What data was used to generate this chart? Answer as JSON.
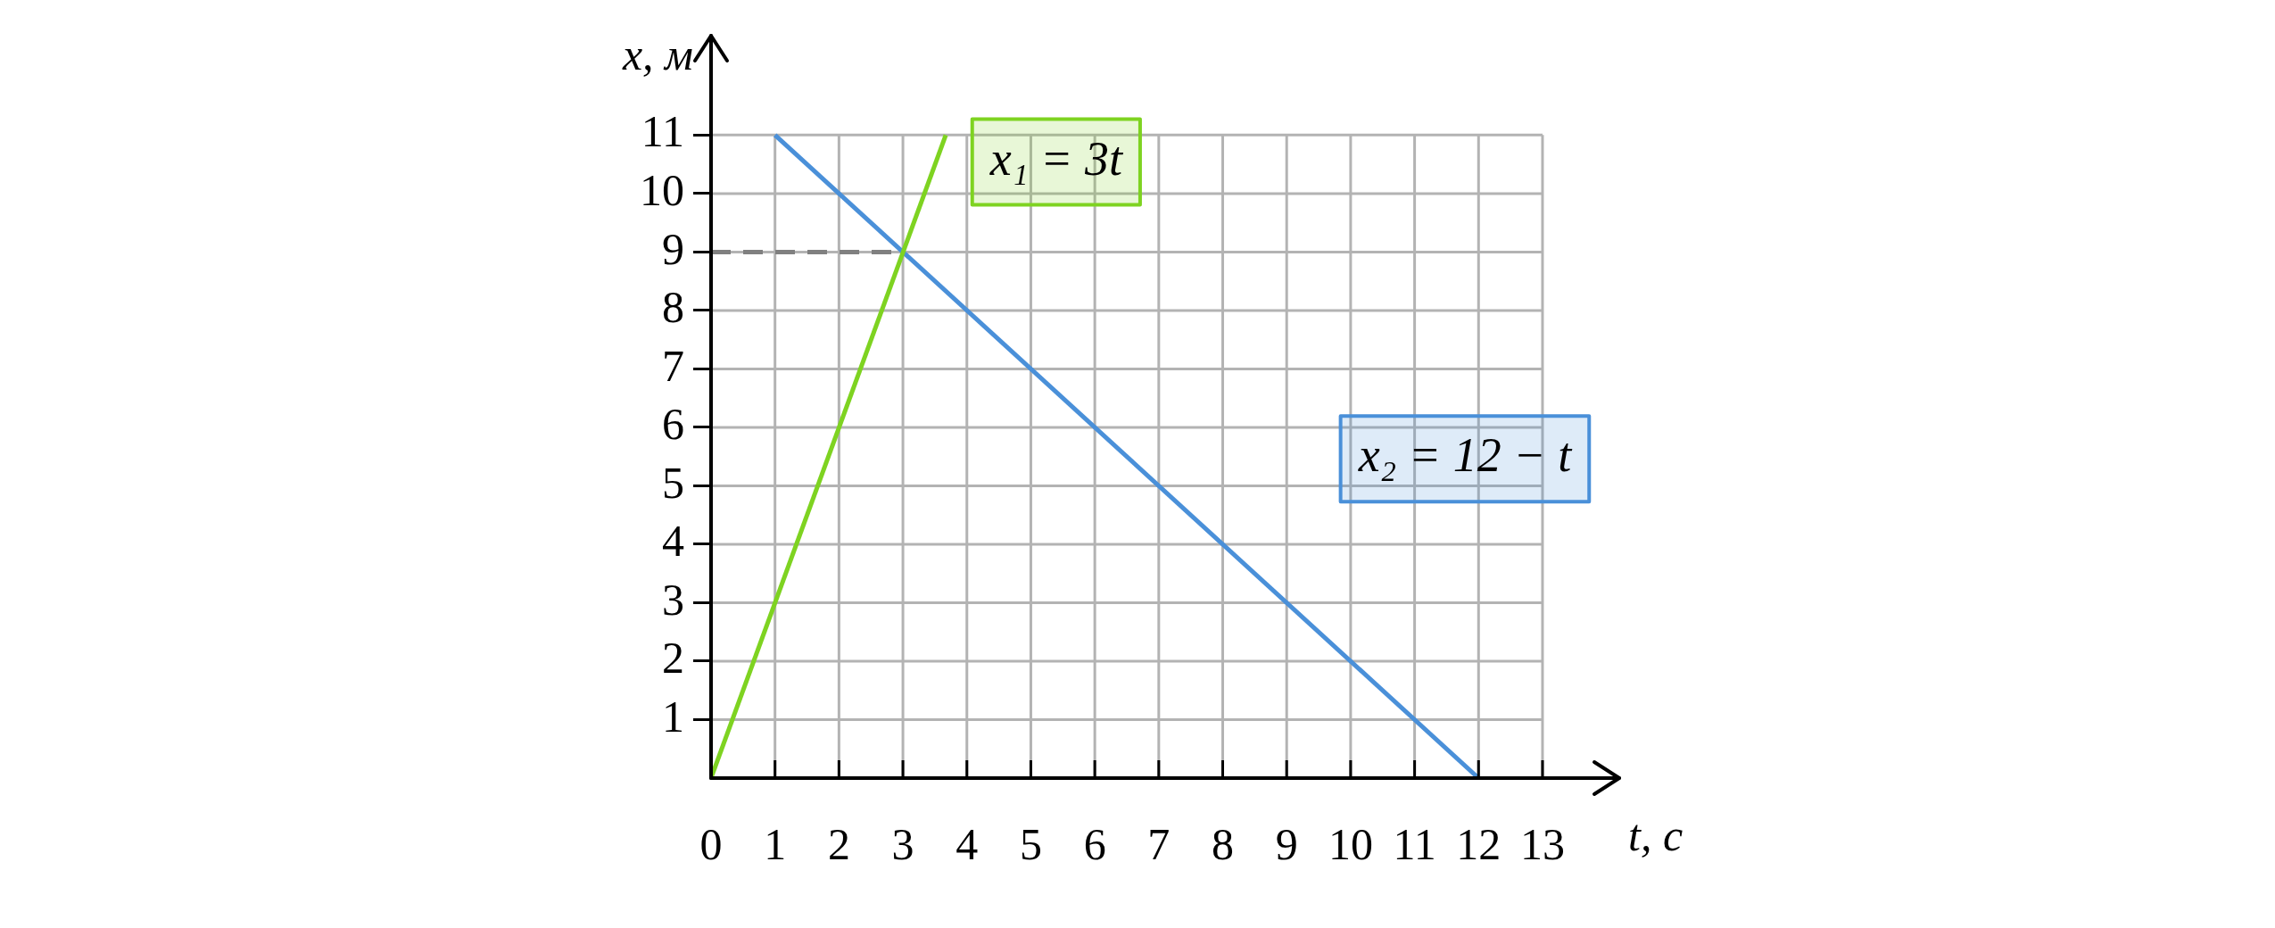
{
  "chart_data": {
    "type": "line",
    "xlabel": "t, с",
    "ylabel": "x, м",
    "xlim": [
      0,
      14.2
    ],
    "ylim": [
      0,
      12.7
    ],
    "xticks": [
      0,
      1,
      2,
      3,
      4,
      5,
      6,
      7,
      8,
      9,
      10,
      11,
      12,
      13
    ],
    "yticks": [
      1,
      2,
      3,
      4,
      5,
      6,
      7,
      8,
      9,
      10,
      11
    ],
    "grid": true,
    "marker": "none",
    "series": [
      {
        "color": "#7ed321",
        "x": [
          0,
          3.67
        ],
        "values": [
          0,
          11
        ]
      },
      {
        "color": "#4a90d9",
        "x": [
          1,
          12
        ],
        "values": [
          11,
          0
        ]
      },
      {
        "color": "#808080",
        "x": [
          0,
          3
        ],
        "values": [
          9,
          9
        ],
        "line_style": "dashed"
      }
    ],
    "annotations": [
      "x₁ = 3t",
      "x₂ = 12 − t"
    ]
  }
}
